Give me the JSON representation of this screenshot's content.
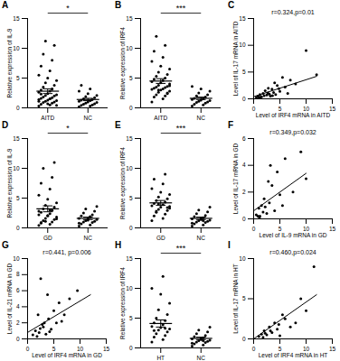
{
  "chart_data": [
    {
      "type": "strip",
      "title": "A",
      "categories": [
        "AITD",
        "NC"
      ],
      "y_label": "Relative expression of IL-9",
      "ylim": [
        0,
        15
      ],
      "yticks": [
        0,
        5,
        10,
        15
      ],
      "color": "#000000",
      "values": [
        [
          0.3,
          0.5,
          0.6,
          0.8,
          0.9,
          1.0,
          1.1,
          1.2,
          1.3,
          1.4,
          1.5,
          1.6,
          1.7,
          1.8,
          2.0,
          2.1,
          2.2,
          2.4,
          2.6,
          2.8,
          3.0,
          3.2,
          3.5,
          3.8,
          4.2,
          4.6,
          5.0,
          5.5,
          6.2,
          7.0,
          8.0,
          9.0,
          10.5,
          11.2,
          0.4,
          0.7,
          1.1,
          1.5,
          2.3,
          3.1
        ],
        [
          0.2,
          0.3,
          0.4,
          0.5,
          0.6,
          0.7,
          0.8,
          0.9,
          1.0,
          1.1,
          1.2,
          1.3,
          1.4,
          1.5,
          1.7,
          1.9,
          2.1,
          2.4,
          2.8,
          3.2,
          3.8
        ]
      ],
      "mean": [
        2.8,
        1.4
      ],
      "error": [
        0.4,
        0.2
      ],
      "annotations": [
        "*"
      ]
    },
    {
      "type": "strip",
      "title": "B",
      "categories": [
        "AITD",
        "NC"
      ],
      "y_label": "Relative expression of IRF4",
      "ylim": [
        0,
        15
      ],
      "yticks": [
        0,
        5,
        10,
        15
      ],
      "color": "#000000",
      "values": [
        [
          1.0,
          1.5,
          1.8,
          2.0,
          2.2,
          2.4,
          2.6,
          2.8,
          3.0,
          3.1,
          3.2,
          3.3,
          3.4,
          3.5,
          3.6,
          3.8,
          4.0,
          4.2,
          4.4,
          4.6,
          4.8,
          5.0,
          5.3,
          5.6,
          6.0,
          6.5,
          7.0,
          7.8,
          8.5,
          9.5,
          10.5,
          12.0,
          2.5,
          3.0,
          3.7
        ],
        [
          0.3,
          0.5,
          0.6,
          0.8,
          0.9,
          1.0,
          1.1,
          1.2,
          1.3,
          1.4,
          1.5,
          1.6,
          1.8,
          2.0,
          2.2,
          2.5,
          2.8,
          3.2,
          3.6
        ]
      ],
      "mean": [
        4.5,
        1.6
      ],
      "error": [
        0.4,
        0.2
      ],
      "annotations": [
        "***"
      ]
    },
    {
      "type": "scatter",
      "title": "C",
      "x_label": "Level of IRF4 mRNA in AITD",
      "y_label": "Level of IL-17 mRNA in AITD",
      "xlim": [
        0,
        15
      ],
      "xticks": [
        0,
        5,
        10,
        15
      ],
      "ylim": [
        0,
        15
      ],
      "yticks": [
        0,
        5,
        10,
        15
      ],
      "color": "#000000",
      "x": [
        0.5,
        0.8,
        1.0,
        1.2,
        1.5,
        1.8,
        2.0,
        2.2,
        2.5,
        2.8,
        3.0,
        3.2,
        3.5,
        3.8,
        4.0,
        4.2,
        4.5,
        5.0,
        5.5,
        6.0,
        6.5,
        7.0,
        8.0,
        10.0,
        12.0,
        1.3,
        2.7,
        3.6,
        4.8
      ],
      "values": [
        0.2,
        0.5,
        0.3,
        0.8,
        0.4,
        1.0,
        0.6,
        1.5,
        0.7,
        2.0,
        0.9,
        0.5,
        1.8,
        1.2,
        3.0,
        0.8,
        2.5,
        1.4,
        4.0,
        2.2,
        1.0,
        3.5,
        2.8,
        9.0,
        4.5,
        0.3,
        1.1,
        0.6,
        1.9
      ],
      "fit_line": {
        "x": [
          0,
          12
        ],
        "y": [
          0.4,
          4.2
        ]
      },
      "annotations": [
        "r=0.324,p=0.01"
      ]
    },
    {
      "type": "strip",
      "title": "D",
      "categories": [
        "GD",
        "NC"
      ],
      "y_label": "Relative expression of IL-9",
      "ylim": [
        0,
        15
      ],
      "yticks": [
        0,
        5,
        10,
        15
      ],
      "color": "#000000",
      "values": [
        [
          0.4,
          0.6,
          0.8,
          1.0,
          1.2,
          1.4,
          1.6,
          1.8,
          2.0,
          2.2,
          2.4,
          2.6,
          2.9,
          3.2,
          3.5,
          3.8,
          4.2,
          4.8,
          5.5,
          6.5,
          7.5,
          8.5,
          10.0,
          11.0,
          1.1,
          1.5,
          2.1,
          2.8,
          3.0,
          0.9
        ],
        [
          0.3,
          0.5,
          0.7,
          0.9,
          1.0,
          1.1,
          1.2,
          1.4,
          1.5,
          1.6,
          1.8,
          2.0,
          2.2,
          2.5,
          2.8,
          3.2,
          3.6,
          1.3,
          0.8,
          1.9
        ]
      ],
      "mean": [
        3.2,
        1.6
      ],
      "error": [
        0.5,
        0.2
      ],
      "annotations": [
        "*"
      ]
    },
    {
      "type": "strip",
      "title": "E",
      "categories": [
        "GD",
        "NC"
      ],
      "y_label": "Relative expression of IRF4",
      "ylim": [
        0,
        15
      ],
      "yticks": [
        0,
        5,
        10,
        15
      ],
      "color": "#000000",
      "values": [
        [
          1.2,
          1.6,
          2.0,
          2.3,
          2.6,
          2.9,
          3.1,
          3.3,
          3.5,
          3.7,
          3.9,
          4.1,
          4.3,
          4.6,
          4.9,
          5.2,
          5.6,
          6.0,
          6.6,
          7.4,
          8.2,
          9.0,
          2.8,
          3.4,
          4.0,
          3.6
        ],
        [
          0.3,
          0.5,
          0.7,
          0.9,
          1.0,
          1.1,
          1.2,
          1.3,
          1.4,
          1.5,
          1.7,
          1.9,
          2.1,
          2.4,
          2.7,
          3.0,
          3.5,
          1.6,
          0.8,
          1.2
        ]
      ],
      "mean": [
        4.2,
        1.6
      ],
      "error": [
        0.4,
        0.2
      ],
      "annotations": [
        "***"
      ]
    },
    {
      "type": "scatter",
      "title": "F",
      "x_label": "Level of IL-9 mRNA in GD",
      "y_label": "Level of IL-17 mRNA in GD",
      "xlim": [
        0,
        15
      ],
      "xticks": [
        0,
        5,
        10,
        15
      ],
      "ylim": [
        0,
        6
      ],
      "yticks": [
        0,
        2,
        4,
        6
      ],
      "color": "#000000",
      "x": [
        0.5,
        1.0,
        1.2,
        1.5,
        1.8,
        2.0,
        2.5,
        3.0,
        3.5,
        4.0,
        4.5,
        5.0,
        6.0,
        7.5,
        9.0,
        1.1,
        2.2,
        2.8,
        0.8,
        3.2,
        10.0,
        5.5
      ],
      "values": [
        0.3,
        0.8,
        0.2,
        1.0,
        0.5,
        1.5,
        0.4,
        1.2,
        2.5,
        0.6,
        3.5,
        1.8,
        4.5,
        2.0,
        5.0,
        0.1,
        0.9,
        2.8,
        0.2,
        4.0,
        3.0,
        1.0
      ],
      "fit_line": {
        "x": [
          0,
          10
        ],
        "y": [
          0.6,
          3.4
        ]
      },
      "annotations": [
        "r=0.349,p=0.032"
      ]
    },
    {
      "type": "scatter",
      "title": "G",
      "x_label": "Level of IRF4 mRNA in GD",
      "y_label": "Level of IL-21 mRNA in GD",
      "xlim": [
        0,
        15
      ],
      "xticks": [
        0,
        5,
        10,
        15
      ],
      "ylim": [
        0,
        10
      ],
      "yticks": [
        0,
        2,
        4,
        6,
        8,
        10
      ],
      "color": "#000000",
      "x": [
        1.0,
        1.5,
        2.0,
        2.2,
        2.5,
        3.0,
        3.2,
        3.5,
        4.0,
        4.5,
        5.0,
        5.5,
        6.0,
        7.0,
        8.0,
        1.8,
        2.8,
        3.8,
        4.2,
        6.5,
        9.5,
        2.4
      ],
      "values": [
        0.5,
        1.0,
        3.0,
        0.8,
        7.5,
        1.5,
        2.0,
        0.6,
        2.5,
        1.2,
        3.5,
        2.0,
        4.5,
        3.0,
        5.0,
        0.3,
        1.8,
        5.5,
        0.9,
        2.2,
        6.0,
        1.3
      ],
      "fit_line": {
        "x": [
          0,
          12
        ],
        "y": [
          0.8,
          5.5
        ]
      },
      "annotations": [
        "r=0.441, p=0.006"
      ]
    },
    {
      "type": "strip",
      "title": "H",
      "categories": [
        "HT",
        "NC"
      ],
      "y_label": "Relative expression of IRF4",
      "ylim": [
        0,
        15
      ],
      "yticks": [
        0,
        5,
        10,
        15
      ],
      "color": "#000000",
      "values": [
        [
          1.0,
          1.4,
          1.8,
          2.1,
          2.4,
          2.7,
          3.0,
          3.2,
          3.4,
          3.6,
          3.9,
          4.2,
          4.6,
          5.0,
          5.6,
          6.4,
          7.5,
          9.0,
          10.0,
          12.0,
          2.9,
          3.3
        ],
        [
          0.3,
          0.5,
          0.7,
          0.9,
          1.0,
          1.1,
          1.2,
          1.3,
          1.4,
          1.5,
          1.7,
          1.9,
          2.1,
          2.4,
          2.7,
          3.0,
          3.5,
          1.6,
          0.8,
          1.2
        ]
      ],
      "mean": [
        4.1,
        1.6
      ],
      "error": [
        0.6,
        0.2
      ],
      "annotations": [
        "***"
      ]
    },
    {
      "type": "scatter",
      "title": "I",
      "x_label": "Level of IRF4 mRNA in HT",
      "y_label": "Level of IL-17 mRNA in HT",
      "xlim": [
        0,
        15
      ],
      "xticks": [
        0,
        5,
        10,
        15
      ],
      "ylim": [
        0,
        10
      ],
      "yticks": [
        0,
        5,
        10
      ],
      "color": "#000000",
      "x": [
        1.0,
        1.5,
        2.0,
        2.5,
        3.0,
        3.5,
        4.0,
        4.5,
        5.0,
        6.0,
        7.0,
        9.0,
        10.0,
        11.5,
        2.2,
        3.2,
        1.8,
        5.5,
        8.0,
        4.8
      ],
      "values": [
        0.3,
        0.6,
        1.0,
        0.5,
        1.5,
        0.8,
        2.0,
        1.2,
        0.4,
        2.5,
        1.5,
        5.0,
        3.5,
        9.0,
        0.7,
        1.0,
        0.2,
        3.0,
        2.0,
        1.8
      ],
      "fit_line": {
        "x": [
          0,
          12
        ],
        "y": [
          0.0,
          5.5
        ]
      },
      "annotations": [
        "r=0.460,p=0.024"
      ]
    }
  ]
}
